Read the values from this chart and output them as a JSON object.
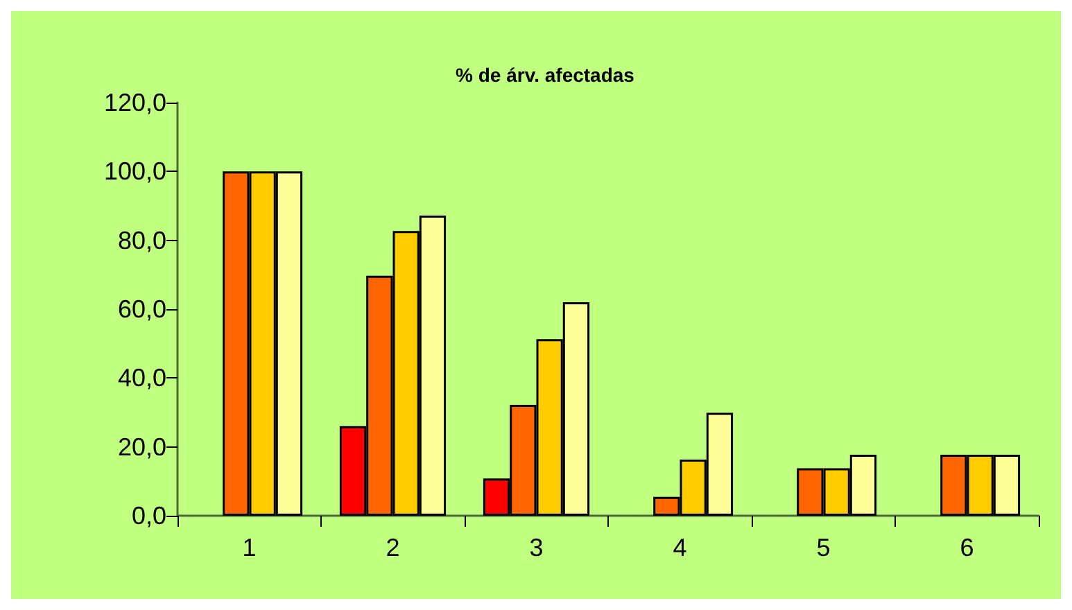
{
  "chart_data": {
    "type": "bar",
    "title": "% de árv. afectadas",
    "categories": [
      "1",
      "2",
      "3",
      "4",
      "5",
      "6"
    ],
    "series": [
      {
        "color": "#ff0000",
        "values": [
          null,
          26.0,
          10.8,
          null,
          null,
          null
        ]
      },
      {
        "color": "#ff6600",
        "values": [
          100.0,
          69.7,
          32.2,
          5.5,
          13.8,
          17.7
        ]
      },
      {
        "color": "#ffcc00",
        "values": [
          100.0,
          82.7,
          51.3,
          16.3,
          13.8,
          17.7
        ]
      },
      {
        "color": "#ffff99",
        "values": [
          100.0,
          87.2,
          62.0,
          29.9,
          17.7,
          17.7
        ]
      }
    ],
    "ylim": [
      0,
      120
    ],
    "yticks": [
      {
        "value": 0,
        "label": "0,0"
      },
      {
        "value": 20,
        "label": "20,0"
      },
      {
        "value": 40,
        "label": "40,0"
      },
      {
        "value": 60,
        "label": "60,0"
      },
      {
        "value": 80,
        "label": "80,0"
      },
      {
        "value": 100,
        "label": "100,0"
      },
      {
        "value": 120,
        "label": "120,0"
      }
    ],
    "grid": false
  }
}
